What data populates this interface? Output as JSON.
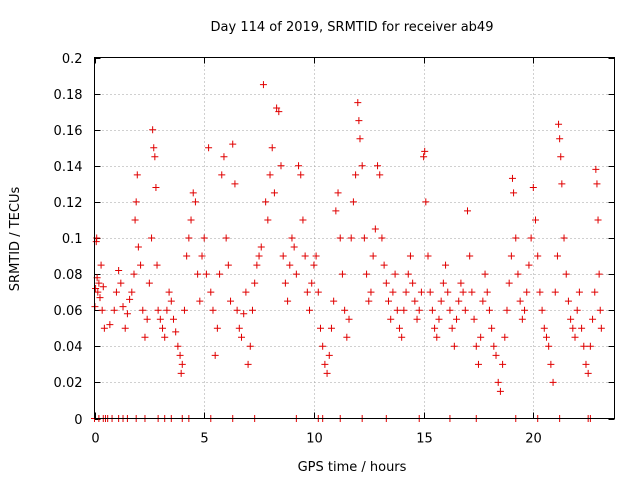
{
  "chart_data": {
    "type": "scatter",
    "title": "Day 114 of 2019, SRMTID for receiver ab49",
    "xlabel": "GPS time / hours",
    "ylabel": "SRMTID / TECUs",
    "xlim": [
      0,
      23.7
    ],
    "ylim": [
      0,
      0.2
    ],
    "grid": true,
    "x_ticks": [
      0,
      5,
      10,
      15,
      20
    ],
    "x_tick_labels": [
      "0",
      "5",
      "10",
      "15",
      "20"
    ],
    "y_ticks": [
      0,
      0.02,
      0.04,
      0.06,
      0.08,
      0.1,
      0.12,
      0.14,
      0.16,
      0.18,
      0.2
    ],
    "y_tick_labels": [
      "0",
      "0.02",
      "0.04",
      "0.06",
      "0.08",
      "0.1",
      "0.12",
      "0.14",
      "0.16",
      "0.18",
      "0.2"
    ],
    "marker": "+",
    "color": "#e00000",
    "series": [
      {
        "name": "SRMTID",
        "points": [
          [
            0.02,
            0.062
          ],
          [
            0.05,
            0.072
          ],
          [
            0.08,
            0.098
          ],
          [
            0.1,
            0.1
          ],
          [
            0.12,
            0.078
          ],
          [
            0.15,
            0.07
          ],
          [
            0.2,
            0.075
          ],
          [
            0.25,
            0.067
          ],
          [
            0.3,
            0.085
          ],
          [
            0.35,
            0.06
          ],
          [
            0.4,
            0.073
          ],
          [
            0.45,
            0.05
          ],
          [
            0.7,
            0.052
          ],
          [
            0.9,
            0.06
          ],
          [
            1.0,
            0.07
          ],
          [
            1.1,
            0.082
          ],
          [
            1.2,
            0.075
          ],
          [
            1.3,
            0.062
          ],
          [
            1.4,
            0.05
          ],
          [
            1.5,
            0.058
          ],
          [
            1.6,
            0.066
          ],
          [
            1.7,
            0.07
          ],
          [
            1.8,
            0.08
          ],
          [
            1.85,
            0.11
          ],
          [
            1.9,
            0.12
          ],
          [
            1.95,
            0.135
          ],
          [
            2.0,
            0.095
          ],
          [
            2.1,
            0.085
          ],
          [
            2.2,
            0.06
          ],
          [
            2.3,
            0.045
          ],
          [
            2.4,
            0.055
          ],
          [
            2.5,
            0.075
          ],
          [
            2.6,
            0.1
          ],
          [
            2.65,
            0.16
          ],
          [
            2.7,
            0.15
          ],
          [
            2.75,
            0.145
          ],
          [
            2.8,
            0.128
          ],
          [
            2.85,
            0.085
          ],
          [
            2.9,
            0.06
          ],
          [
            3.0,
            0.055
          ],
          [
            3.1,
            0.05
          ],
          [
            3.2,
            0.045
          ],
          [
            3.3,
            0.06
          ],
          [
            3.4,
            0.07
          ],
          [
            3.5,
            0.065
          ],
          [
            3.6,
            0.055
          ],
          [
            3.7,
            0.048
          ],
          [
            3.8,
            0.04
          ],
          [
            3.9,
            0.035
          ],
          [
            3.95,
            0.025
          ],
          [
            4.0,
            0.03
          ],
          [
            4.1,
            0.06
          ],
          [
            4.2,
            0.09
          ],
          [
            4.3,
            0.1
          ],
          [
            4.4,
            0.11
          ],
          [
            4.5,
            0.125
          ],
          [
            4.6,
            0.12
          ],
          [
            4.7,
            0.08
          ],
          [
            4.8,
            0.065
          ],
          [
            4.9,
            0.09
          ],
          [
            5.0,
            0.1
          ],
          [
            5.1,
            0.08
          ],
          [
            5.2,
            0.15
          ],
          [
            5.3,
            0.07
          ],
          [
            5.4,
            0.06
          ],
          [
            5.5,
            0.035
          ],
          [
            5.6,
            0.05
          ],
          [
            5.7,
            0.08
          ],
          [
            5.8,
            0.135
          ],
          [
            5.9,
            0.145
          ],
          [
            6.0,
            0.1
          ],
          [
            6.1,
            0.085
          ],
          [
            6.2,
            0.065
          ],
          [
            6.3,
            0.152
          ],
          [
            6.4,
            0.13
          ],
          [
            6.5,
            0.06
          ],
          [
            6.6,
            0.05
          ],
          [
            6.7,
            0.045
          ],
          [
            6.8,
            0.058
          ],
          [
            6.9,
            0.07
          ],
          [
            7.0,
            0.03
          ],
          [
            7.1,
            0.04
          ],
          [
            7.2,
            0.06
          ],
          [
            7.3,
            0.075
          ],
          [
            7.4,
            0.085
          ],
          [
            7.5,
            0.09
          ],
          [
            7.6,
            0.095
          ],
          [
            7.7,
            0.185
          ],
          [
            7.8,
            0.12
          ],
          [
            7.9,
            0.11
          ],
          [
            8.0,
            0.135
          ],
          [
            8.1,
            0.15
          ],
          [
            8.2,
            0.125
          ],
          [
            8.3,
            0.172
          ],
          [
            8.4,
            0.17
          ],
          [
            8.5,
            0.14
          ],
          [
            8.6,
            0.09
          ],
          [
            8.7,
            0.075
          ],
          [
            8.8,
            0.065
          ],
          [
            8.9,
            0.085
          ],
          [
            9.0,
            0.1
          ],
          [
            9.1,
            0.095
          ],
          [
            9.2,
            0.08
          ],
          [
            9.3,
            0.14
          ],
          [
            9.4,
            0.135
          ],
          [
            9.5,
            0.11
          ],
          [
            9.6,
            0.09
          ],
          [
            9.7,
            0.07
          ],
          [
            9.8,
            0.06
          ],
          [
            9.9,
            0.075
          ],
          [
            10.0,
            0.085
          ],
          [
            10.1,
            0.09
          ],
          [
            10.2,
            0.07
          ],
          [
            10.3,
            0.05
          ],
          [
            10.4,
            0.04
          ],
          [
            10.5,
            0.03
          ],
          [
            10.6,
            0.025
          ],
          [
            10.7,
            0.035
          ],
          [
            10.8,
            0.05
          ],
          [
            10.9,
            0.065
          ],
          [
            11.0,
            0.115
          ],
          [
            11.1,
            0.125
          ],
          [
            11.2,
            0.1
          ],
          [
            11.3,
            0.08
          ],
          [
            11.4,
            0.06
          ],
          [
            11.5,
            0.045
          ],
          [
            11.6,
            0.055
          ],
          [
            11.7,
            0.1
          ],
          [
            11.8,
            0.12
          ],
          [
            11.9,
            0.135
          ],
          [
            12.0,
            0.175
          ],
          [
            12.05,
            0.165
          ],
          [
            12.1,
            0.155
          ],
          [
            12.2,
            0.14
          ],
          [
            12.3,
            0.1
          ],
          [
            12.4,
            0.08
          ],
          [
            12.5,
            0.065
          ],
          [
            12.6,
            0.07
          ],
          [
            12.7,
            0.09
          ],
          [
            12.8,
            0.105
          ],
          [
            12.9,
            0.14
          ],
          [
            13.0,
            0.135
          ],
          [
            13.1,
            0.1
          ],
          [
            13.2,
            0.085
          ],
          [
            13.3,
            0.075
          ],
          [
            13.4,
            0.065
          ],
          [
            13.5,
            0.055
          ],
          [
            13.6,
            0.07
          ],
          [
            13.7,
            0.08
          ],
          [
            13.8,
            0.06
          ],
          [
            13.9,
            0.05
          ],
          [
            14.0,
            0.045
          ],
          [
            14.1,
            0.06
          ],
          [
            14.2,
            0.07
          ],
          [
            14.3,
            0.08
          ],
          [
            14.4,
            0.09
          ],
          [
            14.5,
            0.075
          ],
          [
            14.6,
            0.065
          ],
          [
            14.7,
            0.055
          ],
          [
            14.8,
            0.06
          ],
          [
            14.9,
            0.07
          ],
          [
            15.0,
            0.145
          ],
          [
            15.05,
            0.148
          ],
          [
            15.1,
            0.12
          ],
          [
            15.2,
            0.09
          ],
          [
            15.3,
            0.07
          ],
          [
            15.4,
            0.06
          ],
          [
            15.5,
            0.05
          ],
          [
            15.6,
            0.045
          ],
          [
            15.7,
            0.055
          ],
          [
            15.8,
            0.065
          ],
          [
            15.9,
            0.075
          ],
          [
            16.0,
            0.085
          ],
          [
            16.1,
            0.07
          ],
          [
            16.2,
            0.06
          ],
          [
            16.3,
            0.05
          ],
          [
            16.4,
            0.04
          ],
          [
            16.5,
            0.055
          ],
          [
            16.6,
            0.065
          ],
          [
            16.7,
            0.075
          ],
          [
            16.8,
            0.07
          ],
          [
            16.9,
            0.06
          ],
          [
            17.0,
            0.115
          ],
          [
            17.1,
            0.09
          ],
          [
            17.2,
            0.07
          ],
          [
            17.3,
            0.055
          ],
          [
            17.4,
            0.04
          ],
          [
            17.5,
            0.03
          ],
          [
            17.6,
            0.045
          ],
          [
            17.7,
            0.065
          ],
          [
            17.8,
            0.08
          ],
          [
            17.9,
            0.07
          ],
          [
            18.0,
            0.06
          ],
          [
            18.1,
            0.05
          ],
          [
            18.2,
            0.04
          ],
          [
            18.3,
            0.035
          ],
          [
            18.4,
            0.02
          ],
          [
            18.5,
            0.015
          ],
          [
            18.6,
            0.03
          ],
          [
            18.7,
            0.045
          ],
          [
            18.8,
            0.06
          ],
          [
            18.9,
            0.075
          ],
          [
            19.0,
            0.09
          ],
          [
            19.05,
            0.133
          ],
          [
            19.1,
            0.125
          ],
          [
            19.2,
            0.1
          ],
          [
            19.3,
            0.08
          ],
          [
            19.4,
            0.065
          ],
          [
            19.5,
            0.055
          ],
          [
            19.6,
            0.06
          ],
          [
            19.7,
            0.07
          ],
          [
            19.8,
            0.085
          ],
          [
            19.9,
            0.1
          ],
          [
            20.0,
            0.128
          ],
          [
            20.1,
            0.11
          ],
          [
            20.2,
            0.09
          ],
          [
            20.3,
            0.07
          ],
          [
            20.4,
            0.06
          ],
          [
            20.5,
            0.05
          ],
          [
            20.6,
            0.045
          ],
          [
            20.7,
            0.04
          ],
          [
            20.8,
            0.03
          ],
          [
            20.9,
            0.02
          ],
          [
            21.0,
            0.07
          ],
          [
            21.1,
            0.09
          ],
          [
            21.15,
            0.163
          ],
          [
            21.2,
            0.155
          ],
          [
            21.25,
            0.145
          ],
          [
            21.3,
            0.13
          ],
          [
            21.4,
            0.1
          ],
          [
            21.5,
            0.08
          ],
          [
            21.6,
            0.065
          ],
          [
            21.7,
            0.055
          ],
          [
            21.8,
            0.05
          ],
          [
            21.9,
            0.045
          ],
          [
            22.0,
            0.06
          ],
          [
            22.1,
            0.07
          ],
          [
            22.2,
            0.05
          ],
          [
            22.3,
            0.04
          ],
          [
            22.4,
            0.03
          ],
          [
            22.5,
            0.025
          ],
          [
            22.6,
            0.04
          ],
          [
            22.7,
            0.055
          ],
          [
            22.8,
            0.07
          ],
          [
            22.85,
            0.138
          ],
          [
            22.9,
            0.13
          ],
          [
            22.95,
            0.11
          ],
          [
            23.0,
            0.08
          ],
          [
            23.05,
            0.06
          ],
          [
            23.1,
            0.05
          ]
        ]
      }
    ],
    "zero_points": [
      0.0,
      0.2,
      0.4,
      0.5,
      0.6,
      0.8,
      1.1,
      1.3,
      1.5,
      1.9,
      2.3,
      2.9,
      3.2,
      3.5,
      4.0,
      4.3,
      5.3,
      6.3,
      7.3,
      9.2,
      10.2,
      10.4,
      11.2,
      12.2,
      13.3,
      14.8,
      16.2,
      17.4,
      19.2,
      20.2,
      21.2,
      22.5,
      22.6
    ]
  }
}
